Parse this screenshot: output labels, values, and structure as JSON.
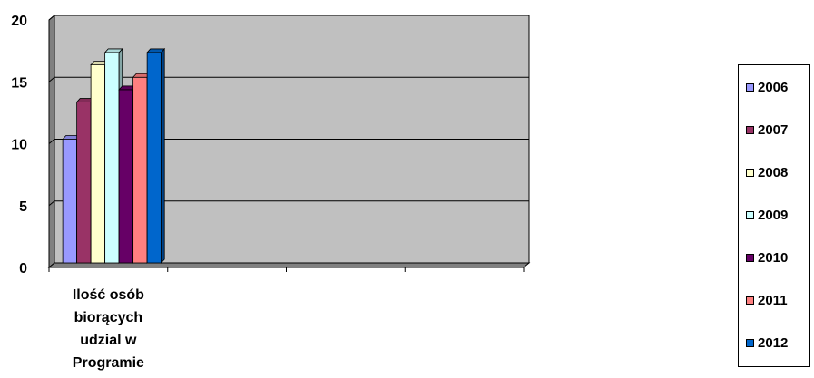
{
  "chart_data": {
    "type": "bar",
    "categories": [
      "Ilość osób biorących udzial w Programie",
      "",
      "",
      ""
    ],
    "category_label_lines": [
      [
        "Ilość osób",
        "biorących",
        "udzial w",
        "Programie"
      ],
      [],
      [],
      []
    ],
    "series": [
      {
        "name": "2006",
        "values": [
          10,
          null,
          null,
          null
        ],
        "color": "#9999FF"
      },
      {
        "name": "2007",
        "values": [
          13,
          null,
          null,
          null
        ],
        "color": "#993366"
      },
      {
        "name": "2008",
        "values": [
          16,
          null,
          null,
          null
        ],
        "color": "#FFFFCC"
      },
      {
        "name": "2009",
        "values": [
          17,
          null,
          null,
          null
        ],
        "color": "#CCFFFF"
      },
      {
        "name": "2010",
        "values": [
          14,
          null,
          null,
          null
        ],
        "color": "#660066"
      },
      {
        "name": "2011",
        "values": [
          15,
          null,
          null,
          null
        ],
        "color": "#FF8080"
      },
      {
        "name": "2012",
        "values": [
          17,
          null,
          null,
          null
        ],
        "color": "#0066CC"
      }
    ],
    "ylim": [
      0,
      20
    ],
    "yticks": [
      "0",
      "5",
      "10",
      "15",
      "20"
    ],
    "grid": true,
    "legend_position": "right",
    "wall_color": "#C0C0C0"
  }
}
